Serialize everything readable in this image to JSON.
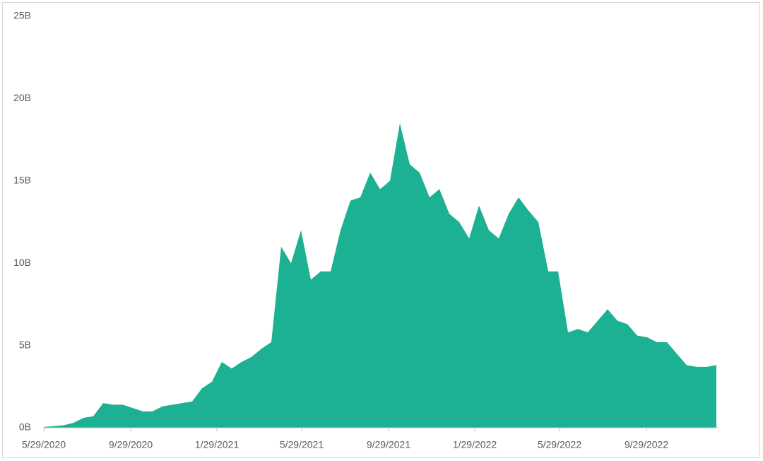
{
  "chart_data": {
    "type": "area",
    "color": "#1bb192",
    "x": [
      "5/29/2020",
      "6/12/2020",
      "6/26/2020",
      "7/10/2020",
      "7/24/2020",
      "8/7/2020",
      "8/21/2020",
      "9/4/2020",
      "9/18/2020",
      "10/2/2020",
      "10/16/2020",
      "10/30/2020",
      "11/13/2020",
      "11/27/2020",
      "12/11/2020",
      "12/25/2020",
      "1/8/2021",
      "1/22/2021",
      "2/5/2021",
      "2/19/2021",
      "3/5/2021",
      "3/19/2021",
      "4/2/2021",
      "4/16/2021",
      "4/30/2021",
      "5/14/2021",
      "5/28/2021",
      "6/11/2021",
      "6/25/2021",
      "7/9/2021",
      "7/23/2021",
      "8/6/2021",
      "8/20/2021",
      "9/3/2021",
      "9/17/2021",
      "10/1/2021",
      "10/15/2021",
      "10/29/2021",
      "11/12/2021",
      "11/26/2021",
      "12/10/2021",
      "12/24/2021",
      "1/7/2022",
      "1/21/2022",
      "2/4/2022",
      "2/18/2022",
      "3/4/2022",
      "3/18/2022",
      "4/1/2022",
      "4/15/2022",
      "4/29/2022",
      "5/13/2022",
      "5/27/2022",
      "6/10/2022",
      "6/24/2022",
      "7/8/2022",
      "7/22/2022",
      "8/5/2022",
      "8/19/2022",
      "9/2/2022",
      "9/16/2022",
      "9/30/2022",
      "10/14/2022",
      "10/28/2022",
      "11/11/2022",
      "11/25/2022",
      "12/9/2022",
      "12/23/2022",
      "1/6/2023"
    ],
    "values": [
      0.05,
      0.1,
      0.15,
      0.3,
      0.6,
      0.7,
      1.5,
      1.4,
      1.4,
      1.2,
      1.0,
      1.0,
      1.3,
      1.4,
      1.5,
      1.6,
      2.4,
      2.8,
      4.0,
      3.6,
      4.0,
      4.3,
      4.8,
      5.2,
      11.0,
      10.0,
      12.0,
      9.0,
      9.5,
      9.5,
      12.0,
      13.8,
      14.0,
      15.5,
      14.5,
      15.0,
      18.5,
      16.0,
      15.5,
      14.0,
      14.5,
      13.0,
      12.5,
      11.5,
      13.5,
      12.0,
      11.5,
      13.0,
      14.0,
      13.2,
      12.5,
      9.5,
      9.5,
      5.8,
      6.0,
      5.8,
      6.5,
      7.2,
      6.5,
      6.3,
      5.6,
      5.5,
      5.2,
      5.2,
      4.5,
      3.8,
      3.7,
      3.7,
      3.8
    ],
    "xlim": [
      "5/29/2020",
      "1/9/2023"
    ],
    "xticks": [
      "5/29/2020",
      "9/29/2020",
      "1/29/2021",
      "5/29/2021",
      "9/29/2021",
      "1/29/2022",
      "5/29/2022",
      "9/29/2022"
    ],
    "ylim": [
      0,
      25
    ],
    "yticks": [
      {
        "value": 0,
        "label": "0B"
      },
      {
        "value": 5,
        "label": "5B"
      },
      {
        "value": 10,
        "label": "10B"
      },
      {
        "value": 15,
        "label": "15B"
      },
      {
        "value": 20,
        "label": "20B"
      },
      {
        "value": 25,
        "label": "25B"
      }
    ]
  }
}
